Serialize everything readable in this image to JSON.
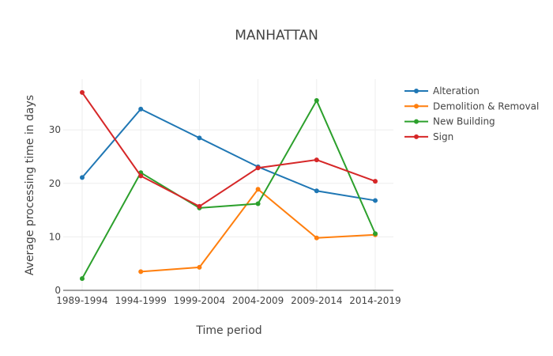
{
  "chart_data": {
    "type": "line",
    "title": "MANHATTAN",
    "xlabel": "Time period",
    "ylabel": "Average processing time in days",
    "categories": [
      "1989-1994",
      "1994-1999",
      "1999-2004",
      "2004-2009",
      "2009-2014",
      "2014-2019"
    ],
    "ylim": [
      0,
      39.5
    ],
    "yticks": [
      0,
      10,
      20,
      30
    ],
    "grid": true,
    "legend_position": "right",
    "series": [
      {
        "name": "Alteration",
        "color": "#1f77b4",
        "values": [
          21.1,
          33.9,
          28.5,
          23.1,
          18.6,
          16.8
        ]
      },
      {
        "name": "Demolition & Removal",
        "color": "#ff7f0e",
        "values": [
          null,
          3.5,
          4.3,
          18.9,
          9.8,
          10.4
        ]
      },
      {
        "name": "New Building",
        "color": "#2ca02c",
        "values": [
          2.2,
          22.0,
          15.4,
          16.2,
          35.5,
          10.6
        ]
      },
      {
        "name": "Sign",
        "color": "#d62728",
        "values": [
          37.0,
          21.4,
          15.7,
          22.9,
          24.4,
          20.4
        ]
      }
    ]
  }
}
